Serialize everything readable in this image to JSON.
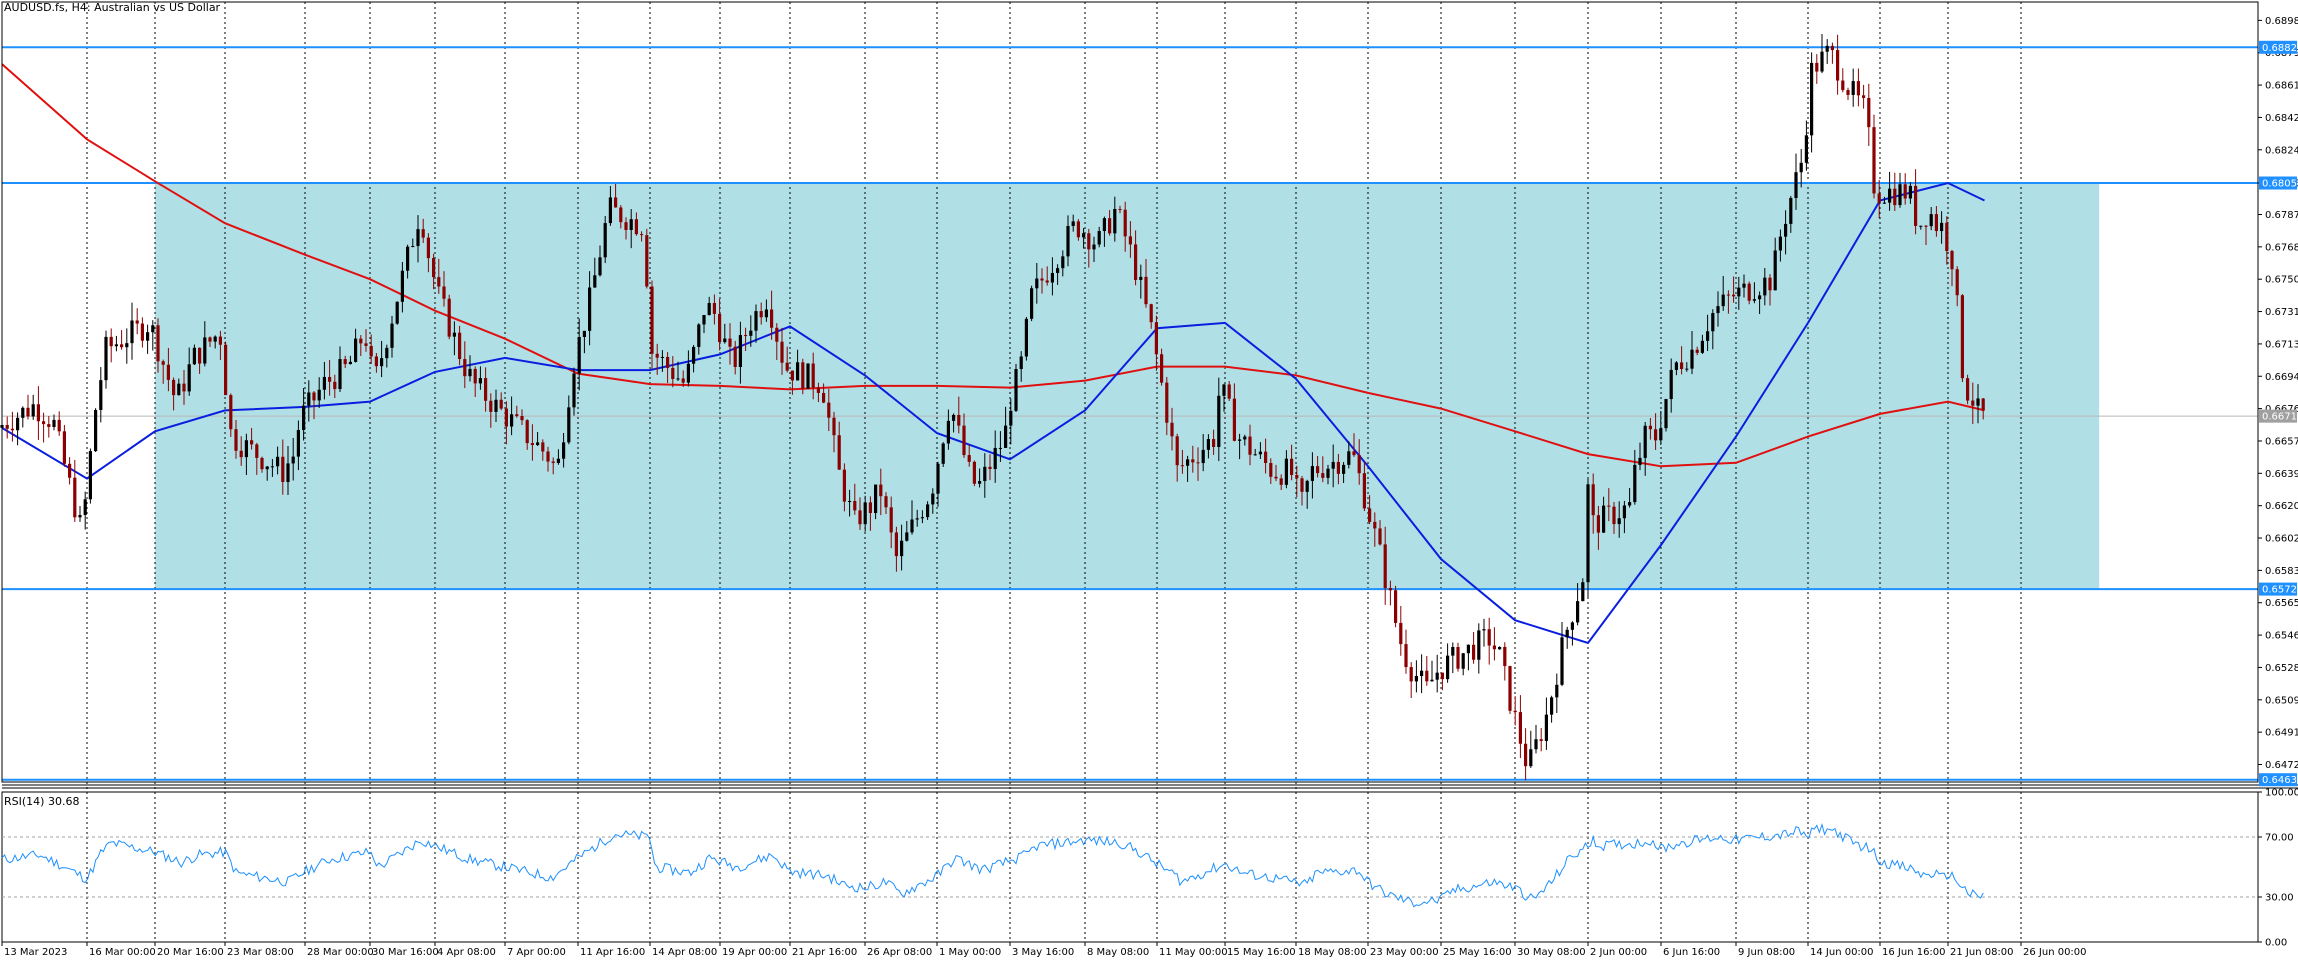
{
  "header": {
    "symbol_label": "AUDUSD.fs, H4:  Australian vs US Dollar",
    "indicator_label": "RSI(14) 30.68"
  },
  "colors": {
    "zone": "#b0e0e6",
    "hline": "#1e90ff",
    "ma_slow": "#e01010",
    "ma_fast": "#0a1ee0",
    "rsi": "#1e90ff",
    "bull": "#000000",
    "bear": "#8b0000",
    "grid": "#000000",
    "badge": "#1e90ff",
    "current_badge": "#a0a0a0"
  },
  "chart_data": {
    "type": "candlestick",
    "timeframe": "H4",
    "price_axis": {
      "ticks": [
        "0.68980",
        "0.68795",
        "0.68610",
        "0.68425",
        "0.68240",
        "0.68050",
        "0.67870",
        "0.67685",
        "0.67500",
        "0.67315",
        "0.67130",
        "0.66945",
        "0.66760",
        "0.66575",
        "0.66390",
        "0.66205",
        "0.66020",
        "0.65835",
        "0.65650",
        "0.65465",
        "0.65280",
        "0.65095",
        "0.64910",
        "0.64725"
      ],
      "range": [
        0.64625,
        0.69085
      ]
    },
    "time_axis": {
      "ticks": [
        "13 Mar 2023",
        "16 Mar 00:00",
        "20 Mar 16:00",
        "23 Mar 08:00",
        "28 Mar 00:00",
        "30 Mar 16:00",
        "4 Apr 08:00",
        "7 Apr 00:00",
        "11 Apr 16:00",
        "14 Apr 08:00",
        "19 Apr 00:00",
        "21 Apr 16:00",
        "26 Apr 08:00",
        "1 May 00:00",
        "3 May 16:00",
        "8 May 08:00",
        "11 May 00:00",
        "15 May 16:00",
        "18 May 08:00",
        "23 May 00:00",
        "25 May 16:00",
        "30 May 08:00",
        "2 Jun 00:00",
        "6 Jun 16:00",
        "9 Jun 08:00",
        "14 Jun 00:00",
        "16 Jun 16:00",
        "21 Jun 08:00",
        "26 Jun 00:00"
      ]
    },
    "horizontal_levels": [
      {
        "price": 0.68826,
        "label": "0.68826"
      },
      {
        "price": 0.6805,
        "label": "0.68050"
      },
      {
        "price": 0.65728,
        "label": "0.65728"
      },
      {
        "price": 0.64638,
        "label": "0.64638"
      }
    ],
    "zone": {
      "price_top": 0.6805,
      "price_bottom": 0.65728,
      "time_from": "20 Mar 16:00",
      "time_to": "1 Jul 00:00"
    },
    "current_price": {
      "price": 0.66717,
      "label": "0.66717"
    },
    "price_path": [
      [
        "13 Mar 2023",
        0.6665
      ],
      [
        "14 Mar 08:00",
        0.6678
      ],
      [
        "15 Mar 00:00",
        0.6668
      ],
      [
        "16 Mar 00:00",
        0.6605
      ],
      [
        "17 Mar 00:00",
        0.668
      ],
      [
        "17 Mar 16:00",
        0.671
      ],
      [
        "20 Mar 16:00",
        0.6725
      ],
      [
        "21 Mar 16:00",
        0.668
      ],
      [
        "22 Mar 08:00",
        0.6705
      ],
      [
        "23 Mar 08:00",
        0.672
      ],
      [
        "24 Mar 00:00",
        0.666
      ],
      [
        "27 Mar 00:00",
        0.664
      ],
      [
        "27 Mar 16:00",
        0.665
      ],
      [
        "28 Mar 00:00",
        0.667
      ],
      [
        "29 Mar 00:00",
        0.669
      ],
      [
        "30 Mar 00:00",
        0.67
      ],
      [
        "30 Mar 16:00",
        0.672
      ],
      [
        "31 Mar 08:00",
        0.669
      ],
      [
        "3 Apr 08:00",
        0.678
      ],
      [
        "3 Apr 16:00",
        0.679
      ],
      [
        "4 Apr 08:00",
        0.676
      ],
      [
        "4 Apr 16:00",
        0.674
      ],
      [
        "5 Apr 16:00",
        0.67
      ],
      [
        "6 Apr 00:00",
        0.669
      ],
      [
        "7 Apr 00:00",
        0.6675
      ],
      [
        "10 Apr 00:00",
        0.665
      ],
      [
        "10 Apr 16:00",
        0.664
      ],
      [
        "11 Apr 16:00",
        0.67
      ],
      [
        "12 Apr 08:00",
        0.674
      ],
      [
        "13 Apr 00:00",
        0.679
      ],
      [
        "14 Apr 08:00",
        0.678
      ],
      [
        "14 Apr 16:00",
        0.671
      ],
      [
        "17 Apr 00:00",
        0.669
      ],
      [
        "17 Apr 16:00",
        0.671
      ],
      [
        "18 Apr 08:00",
        0.6735
      ],
      [
        "19 Apr 00:00",
        0.673
      ],
      [
        "19 Apr 16:00",
        0.67
      ],
      [
        "20 Apr 08:00",
        0.6725
      ],
      [
        "21 Apr 00:00",
        0.674
      ],
      [
        "21 Apr 16:00",
        0.67
      ],
      [
        "24 Apr 00:00",
        0.669
      ],
      [
        "25 Apr 00:00",
        0.664
      ],
      [
        "26 Apr 00:00",
        0.661
      ],
      [
        "26 Apr 08:00",
        0.6615
      ],
      [
        "27 Apr 00:00",
        0.662
      ],
      [
        "27 Apr 16:00",
        0.663
      ],
      [
        "28 Apr 16:00",
        0.659
      ],
      [
        "1 May 00:00",
        0.663
      ],
      [
        "1 May 16:00",
        0.668
      ],
      [
        "2 May 08:00",
        0.664
      ],
      [
        "2 May 16:00",
        0.663
      ],
      [
        "3 May 16:00",
        0.666
      ],
      [
        "4 May 00:00",
        0.668
      ],
      [
        "4 May 16:00",
        0.67
      ],
      [
        "5 May 08:00",
        0.674
      ],
      [
        "8 May 00:00",
        0.678
      ],
      [
        "8 May 08:00",
        0.678
      ],
      [
        "9 May 00:00",
        0.677
      ],
      [
        "9 May 16:00",
        0.679
      ],
      [
        "10 May 08:00",
        0.676
      ],
      [
        "11 May 00:00",
        0.672
      ],
      [
        "11 May 16:00",
        0.669
      ],
      [
        "12 May 08:00",
        0.666
      ],
      [
        "12 May 16:00",
        0.664
      ],
      [
        "15 May 08:00",
        0.666
      ],
      [
        "15 May 16:00",
        0.669
      ],
      [
        "16 May 08:00",
        0.666
      ],
      [
        "17 May 00:00",
        0.665
      ],
      [
        "17 May 16:00",
        0.664
      ],
      [
        "18 May 08:00",
        0.664
      ],
      [
        "19 May 00:00",
        0.662
      ],
      [
        "19 May 16:00",
        0.664
      ],
      [
        "22 May 08:00",
        0.665
      ],
      [
        "23 May 00:00",
        0.663
      ],
      [
        "23 May 16:00",
        0.659
      ],
      [
        "24 May 08:00",
        0.6545
      ],
      [
        "24 May 16:00",
        0.653
      ],
      [
        "25 May 08:00",
        0.6515
      ],
      [
        "25 May 16:00",
        0.6525
      ],
      [
        "26 May 08:00",
        0.653
      ],
      [
        "29 May 00:00",
        0.6545
      ],
      [
        "29 May 16:00",
        0.6535
      ],
      [
        "30 May 08:00",
        0.651
      ],
      [
        "30 May 16:00",
        0.649
      ],
      [
        "31 May 00:00",
        0.647
      ],
      [
        "31 May 16:00",
        0.65
      ],
      [
        "1 Jun 08:00",
        0.6545
      ],
      [
        "2 Jun 00:00",
        0.658
      ],
      [
        "2 Jun 08:00",
        0.663
      ],
      [
        "2 Jun 16:00",
        0.661
      ],
      [
        "5 Jun 00:00",
        0.662
      ],
      [
        "5 Jun 08:00",
        0.664
      ],
      [
        "6 Jun 00:00",
        0.666
      ],
      [
        "6 Jun 16:00",
        0.666
      ],
      [
        "7 Jun 08:00",
        0.67
      ],
      [
        "8 Jun 00:00",
        0.671
      ],
      [
        "8 Jun 16:00",
        0.673
      ],
      [
        "9 Jun 08:00",
        0.674
      ],
      [
        "12 Jun 00:00",
        0.675
      ],
      [
        "12 Jun 16:00",
        0.678
      ],
      [
        "13 Jun 08:00",
        0.68
      ],
      [
        "14 Jun 00:00",
        0.682
      ],
      [
        "14 Jun 08:00",
        0.687
      ],
      [
        "15 Jun 00:00",
        0.688
      ],
      [
        "15 Jun 16:00",
        0.686
      ],
      [
        "16 Jun 08:00",
        0.6845
      ],
      [
        "16 Jun 16:00",
        0.68
      ],
      [
        "19 Jun 00:00",
        0.68
      ],
      [
        "19 Jun 16:00",
        0.678
      ],
      [
        "20 Jun 08:00",
        0.679
      ],
      [
        "21 Jun 00:00",
        0.678
      ],
      [
        "21 Jun 08:00",
        0.678
      ],
      [
        "22 Jun 00:00",
        0.676
      ],
      [
        "22 Jun 16:00",
        0.669
      ],
      [
        "23 Jun 08:00",
        0.668
      ],
      [
        "23 Jun 16:00",
        0.6672
      ]
    ],
    "ma_slow_path": [
      [
        "13 Mar 2023",
        0.6873
      ],
      [
        "16 Mar 00:00",
        0.683
      ],
      [
        "20 Mar 16:00",
        0.6806
      ],
      [
        "23 Mar 08:00",
        0.6782
      ],
      [
        "28 Mar 00:00",
        0.6764
      ],
      [
        "30 Mar 16:00",
        0.675
      ],
      [
        "4 Apr 08:00",
        0.6732
      ],
      [
        "7 Apr 00:00",
        0.6716
      ],
      [
        "11 Apr 16:00",
        0.6696
      ],
      [
        "14 Apr 08:00",
        0.669
      ],
      [
        "19 Apr 00:00",
        0.6689
      ],
      [
        "21 Apr 16:00",
        0.6687
      ],
      [
        "26 Apr 08:00",
        0.6689
      ],
      [
        "1 May 00:00",
        0.6689
      ],
      [
        "3 May 16:00",
        0.6688
      ],
      [
        "8 May 08:00",
        0.6692
      ],
      [
        "11 May 00:00",
        0.67
      ],
      [
        "15 May 16:00",
        0.67
      ],
      [
        "18 May 08:00",
        0.6695
      ],
      [
        "23 May 00:00",
        0.6685
      ],
      [
        "25 May 16:00",
        0.6676
      ],
      [
        "30 May 08:00",
        0.6663
      ],
      [
        "2 Jun 00:00",
        0.665
      ],
      [
        "6 Jun 16:00",
        0.6643
      ],
      [
        "9 Jun 08:00",
        0.6645
      ],
      [
        "14 Jun 00:00",
        0.666
      ],
      [
        "16 Jun 16:00",
        0.6673
      ],
      [
        "21 Jun 08:00",
        0.668
      ],
      [
        "23 Jun 16:00",
        0.6675
      ]
    ],
    "ma_fast_path": [
      [
        "13 Mar 2023",
        0.6665
      ],
      [
        "16 Mar 00:00",
        0.6636
      ],
      [
        "20 Mar 16:00",
        0.6663
      ],
      [
        "23 Mar 08:00",
        0.6675
      ],
      [
        "28 Mar 00:00",
        0.6677
      ],
      [
        "30 Mar 16:00",
        0.668
      ],
      [
        "4 Apr 08:00",
        0.6697
      ],
      [
        "7 Apr 00:00",
        0.6705
      ],
      [
        "11 Apr 16:00",
        0.6698
      ],
      [
        "14 Apr 08:00",
        0.6698
      ],
      [
        "19 Apr 00:00",
        0.6707
      ],
      [
        "21 Apr 16:00",
        0.6723
      ],
      [
        "26 Apr 08:00",
        0.6695
      ],
      [
        "1 May 00:00",
        0.6662
      ],
      [
        "3 May 16:00",
        0.6647
      ],
      [
        "8 May 08:00",
        0.6675
      ],
      [
        "11 May 00:00",
        0.6722
      ],
      [
        "15 May 16:00",
        0.6725
      ],
      [
        "18 May 08:00",
        0.6693
      ],
      [
        "23 May 00:00",
        0.6643
      ],
      [
        "25 May 16:00",
        0.659
      ],
      [
        "30 May 08:00",
        0.6555
      ],
      [
        "2 Jun 00:00",
        0.6542
      ],
      [
        "6 Jun 16:00",
        0.6598
      ],
      [
        "9 Jun 08:00",
        0.666
      ],
      [
        "14 Jun 00:00",
        0.6725
      ],
      [
        "16 Jun 16:00",
        0.6795
      ],
      [
        "21 Jun 08:00",
        0.6805
      ],
      [
        "23 Jun 16:00",
        0.6795
      ]
    ],
    "rsi": {
      "label": "RSI(14) 30.68",
      "value": 30.68,
      "levels": [
        30,
        70
      ],
      "ticks": [
        "100.00",
        "70.00",
        "30.00",
        "0.00"
      ],
      "range": [
        0,
        100
      ],
      "path": [
        [
          "13 Mar 2023",
          55
        ],
        [
          "14 Mar 08:00",
          58
        ],
        [
          "15 Mar 00:00",
          52
        ],
        [
          "16 Mar 00:00",
          42
        ],
        [
          "17 Mar 00:00",
          60
        ],
        [
          "17 Mar 16:00",
          66
        ],
        [
          "20 Mar 16:00",
          60
        ],
        [
          "21 Mar 16:00",
          53
        ],
        [
          "22 Mar 08:00",
          58
        ],
        [
          "23 Mar 08:00",
          60
        ],
        [
          "24 Mar 00:00",
          46
        ],
        [
          "27 Mar 00:00",
          40
        ],
        [
          "28 Mar 00:00",
          47
        ],
        [
          "29 Mar 00:00",
          55
        ],
        [
          "30 Mar 00:00",
          58
        ],
        [
          "30 Mar 16:00",
          60
        ],
        [
          "31 Mar 08:00",
          50
        ],
        [
          "3 Apr 08:00",
          68
        ],
        [
          "4 Apr 08:00",
          64
        ],
        [
          "5 Apr 16:00",
          55
        ],
        [
          "7 Apr 00:00",
          50
        ],
        [
          "10 Apr 00:00",
          43
        ],
        [
          "11 Apr 16:00",
          56
        ],
        [
          "13 Apr 00:00",
          72
        ],
        [
          "14 Apr 08:00",
          70
        ],
        [
          "14 Apr 16:00",
          50
        ],
        [
          "17 Apr 00:00",
          46
        ],
        [
          "18 Apr 08:00",
          56
        ],
        [
          "19 Apr 16:00",
          50
        ],
        [
          "21 Apr 00:00",
          58
        ],
        [
          "21 Apr 16:00",
          47
        ],
        [
          "24 Apr 00:00",
          44
        ],
        [
          "25 Apr 00:00",
          38
        ],
        [
          "26 Apr 08:00",
          36
        ],
        [
          "27 Apr 16:00",
          40
        ],
        [
          "28 Apr 16:00",
          32
        ],
        [
          "1 May 00:00",
          44
        ],
        [
          "1 May 16:00",
          56
        ],
        [
          "2 May 16:00",
          48
        ],
        [
          "3 May 16:00",
          54
        ],
        [
          "4 May 16:00",
          58
        ],
        [
          "5 May 08:00",
          64
        ],
        [
          "8 May 08:00",
          68
        ],
        [
          "9 May 16:00",
          66
        ],
        [
          "10 May 08:00",
          60
        ],
        [
          "11 May 00:00",
          52
        ],
        [
          "12 May 08:00",
          44
        ],
        [
          "12 May 16:00",
          40
        ],
        [
          "15 May 16:00",
          52
        ],
        [
          "16 May 08:00",
          46
        ],
        [
          "17 May 16:00",
          42
        ],
        [
          "19 May 00:00",
          38
        ],
        [
          "19 May 16:00",
          46
        ],
        [
          "22 May 08:00",
          48
        ],
        [
          "23 May 00:00",
          40
        ],
        [
          "23 May 16:00",
          32
        ],
        [
          "24 May 16:00",
          26
        ],
        [
          "25 May 16:00",
          28
        ],
        [
          "26 May 08:00",
          34
        ],
        [
          "29 May 00:00",
          40
        ],
        [
          "30 May 08:00",
          36
        ],
        [
          "30 May 16:00",
          32
        ],
        [
          "31 May 00:00",
          28
        ],
        [
          "31 May 16:00",
          40
        ],
        [
          "1 Jun 08:00",
          56
        ],
        [
          "2 Jun 00:00",
          64
        ],
        [
          "2 Jun 08:00",
          70
        ],
        [
          "2 Jun 16:00",
          64
        ],
        [
          "5 Jun 08:00",
          66
        ],
        [
          "6 Jun 00:00",
          68
        ],
        [
          "6 Jun 16:00",
          62
        ],
        [
          "7 Jun 08:00",
          66
        ],
        [
          "8 Jun 16:00",
          70
        ],
        [
          "9 Jun 08:00",
          68
        ],
        [
          "12 Jun 16:00",
          72
        ],
        [
          "13 Jun 08:00",
          74
        ],
        [
          "14 Jun 00:00",
          70
        ],
        [
          "14 Jun 08:00",
          76
        ],
        [
          "15 Jun 00:00",
          74
        ],
        [
          "15 Jun 16:00",
          66
        ],
        [
          "16 Jun 08:00",
          62
        ],
        [
          "16 Jun 16:00",
          54
        ],
        [
          "19 Jun 00:00",
          48
        ],
        [
          "19 Jun 16:00",
          44
        ],
        [
          "20 Jun 08:00",
          46
        ],
        [
          "21 Jun 00:00",
          42
        ],
        [
          "21 Jun 08:00",
          46
        ],
        [
          "22 Jun 00:00",
          40
        ],
        [
          "22 Jun 16:00",
          32
        ],
        [
          "23 Jun 08:00",
          30
        ],
        [
          "23 Jun 16:00",
          31
        ]
      ]
    }
  }
}
